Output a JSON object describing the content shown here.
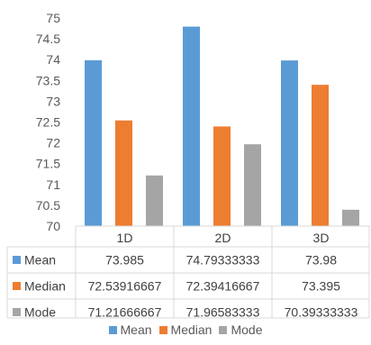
{
  "chart_data": {
    "type": "bar",
    "categories": [
      "1D",
      "2D",
      "3D"
    ],
    "series": [
      {
        "name": "Mean",
        "values": [
          73.985,
          74.79333333,
          73.98
        ],
        "labels": [
          "73.985",
          "74.79333333",
          "73.98"
        ],
        "color": "#5B9BD5"
      },
      {
        "name": "Median",
        "values": [
          72.53916667,
          72.39416667,
          73.395
        ],
        "labels": [
          "72.53916667",
          "72.39416667",
          "73.395"
        ],
        "color": "#ED7D31"
      },
      {
        "name": "Mode",
        "values": [
          71.21666667,
          71.96583333,
          70.39333333
        ],
        "labels": [
          "71.21666667",
          "71.96583333",
          "70.39333333"
        ],
        "color": "#A5A5A5"
      }
    ],
    "ylim": [
      70,
      75
    ],
    "yticks": [
      "70",
      "70.5",
      "71",
      "71.5",
      "72",
      "72.5",
      "73",
      "73.5",
      "74",
      "74.5",
      "75"
    ],
    "title": "",
    "xlabel": "",
    "ylabel": "",
    "grid": false,
    "legend_position": "bottom",
    "data_table": true
  }
}
